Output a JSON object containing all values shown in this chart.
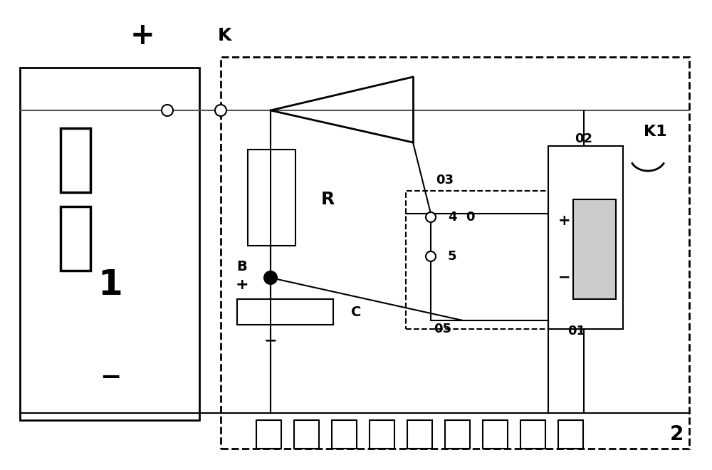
{
  "bg_color": "#ffffff",
  "line_color": "#000000",
  "fig_width": 10.0,
  "fig_height": 6.6,
  "dpi": 100,
  "xlim": [
    0,
    1000
  ],
  "ylim": [
    0,
    660
  ]
}
